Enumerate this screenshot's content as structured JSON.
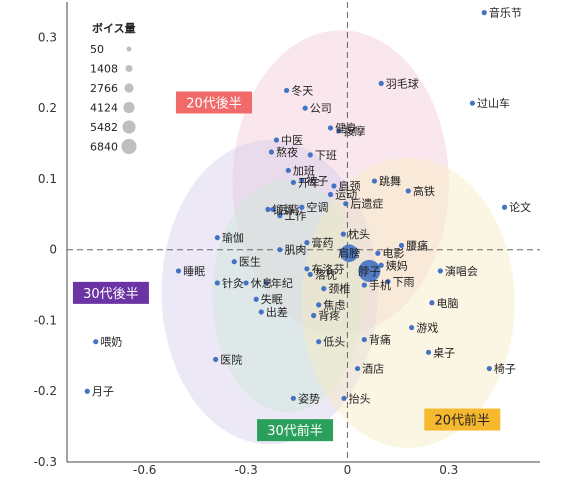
{
  "chart_data": {
    "type": "scatter",
    "xlim": [
      -0.83,
      0.57
    ],
    "ylim": [
      -0.3,
      0.35
    ],
    "x_ticks": [
      {
        "value": -0.6,
        "label": "-0.6"
      },
      {
        "value": -0.3,
        "label": "-0.3"
      },
      {
        "value": 0,
        "label": "0"
      },
      {
        "value": 0.3,
        "label": "0.3"
      }
    ],
    "y_ticks": [
      {
        "value": 0.3,
        "label": "0.3"
      },
      {
        "value": 0.2,
        "label": "0.2"
      },
      {
        "value": 0.1,
        "label": "0.1"
      },
      {
        "value": 0,
        "label": "0"
      },
      {
        "value": -0.1,
        "label": "-0.1"
      },
      {
        "value": -0.2,
        "label": "-0.2"
      },
      {
        "value": -0.3,
        "label": "-0.3"
      }
    ],
    "grid": false,
    "legend": {
      "title": "ボイス量",
      "position": "top-left",
      "entries": [
        {
          "label": "50",
          "size": 50
        },
        {
          "label": "1408",
          "size": 1408
        },
        {
          "label": "2766",
          "size": 2766
        },
        {
          "label": "4124",
          "size": 4124
        },
        {
          "label": "5482",
          "size": 5482
        },
        {
          "label": "6840",
          "size": 6840
        }
      ]
    },
    "groups": [
      {
        "name": "20代後半",
        "cx": -0.02,
        "cy": 0.095,
        "rx": 0.32,
        "ry": 0.215,
        "fill": "#f3c9d6",
        "tag_color": "#f06a6a",
        "tag_text_color": "#ffffff",
        "tag_x": -0.395,
        "tag_y": 0.208
      },
      {
        "name": "30代後半",
        "cx": -0.23,
        "cy": -0.06,
        "rx": 0.32,
        "ry": 0.215,
        "fill": "#d6cdea",
        "tag_color": "#6b33a3",
        "tag_text_color": "#ffffff",
        "tag_x": -0.7,
        "tag_y": -0.061
      },
      {
        "name": "30代前半",
        "cx": -0.175,
        "cy": -0.065,
        "rx": 0.225,
        "ry": 0.165,
        "fill": "#cfe8d6",
        "tag_color": "#2aa05c",
        "tag_text_color": "#ffffff",
        "tag_x": -0.155,
        "tag_y": -0.255
      },
      {
        "name": "20代前半",
        "cx": 0.18,
        "cy": -0.075,
        "rx": 0.315,
        "ry": 0.205,
        "fill": "#f7ecc0",
        "tag_color": "#f5b82e",
        "tag_text_color": "#222222",
        "tag_x": 0.34,
        "tag_y": -0.24
      }
    ],
    "points": [
      {
        "label": "音乐节",
        "x": 0.405,
        "y": 0.335,
        "size": 300
      },
      {
        "label": "过山车",
        "x": 0.37,
        "y": 0.207,
        "size": 300
      },
      {
        "label": "羽毛球",
        "x": 0.1,
        "y": 0.235,
        "size": 300
      },
      {
        "label": "冬天",
        "x": -0.18,
        "y": 0.225,
        "size": 300
      },
      {
        "label": "公司",
        "x": -0.125,
        "y": 0.2,
        "size": 300
      },
      {
        "label": "健身",
        "x": -0.05,
        "y": 0.172,
        "size": 300
      },
      {
        "label": "按摩",
        "x": -0.025,
        "y": 0.168,
        "size": 300
      },
      {
        "label": "中医",
        "x": -0.21,
        "y": 0.155,
        "size": 300
      },
      {
        "label": "熬夜",
        "x": -0.225,
        "y": 0.138,
        "size": 300
      },
      {
        "label": "下班",
        "x": -0.11,
        "y": 0.134,
        "size": 300
      },
      {
        "label": "加班",
        "x": -0.175,
        "y": 0.112,
        "size": 300
      },
      {
        "label": "开车",
        "x": -0.16,
        "y": 0.095,
        "size": 300
      },
      {
        "label": "被子",
        "x": -0.135,
        "y": 0.098,
        "size": 300
      },
      {
        "label": "肩颈",
        "x": -0.04,
        "y": 0.09,
        "size": 300
      },
      {
        "label": "跳舞",
        "x": 0.08,
        "y": 0.097,
        "size": 300
      },
      {
        "label": "高铁",
        "x": 0.18,
        "y": 0.083,
        "size": 300
      },
      {
        "label": "运动",
        "x": -0.05,
        "y": 0.078,
        "size": 800
      },
      {
        "label": "论文",
        "x": 0.465,
        "y": 0.06,
        "size": 300
      },
      {
        "label": "锻炼",
        "x": -0.235,
        "y": 0.057,
        "size": 300
      },
      {
        "label": "后背",
        "x": -0.22,
        "y": 0.057,
        "size": 300
      },
      {
        "label": "空调",
        "x": -0.135,
        "y": 0.06,
        "size": 300
      },
      {
        "label": "后遗症",
        "x": -0.005,
        "y": 0.065,
        "size": 300
      },
      {
        "label": "工作",
        "x": -0.2,
        "y": 0.048,
        "size": 300
      },
      {
        "label": "瑜伽",
        "x": -0.385,
        "y": 0.017,
        "size": 300
      },
      {
        "label": "枕头",
        "x": -0.012,
        "y": 0.022,
        "size": 300
      },
      {
        "label": "腰痛",
        "x": 0.16,
        "y": 0.006,
        "size": 300
      },
      {
        "label": "肌肉",
        "x": -0.2,
        "y": 0.0,
        "size": 300
      },
      {
        "label": "膏药",
        "x": -0.12,
        "y": 0.01,
        "size": 300
      },
      {
        "label": "肩膀",
        "x": 0.005,
        "y": -0.005,
        "size": 3500
      },
      {
        "label": "电影",
        "x": 0.09,
        "y": -0.005,
        "size": 300
      },
      {
        "label": "瑜伽",
        "x": -0.385,
        "y": 0.017,
        "size": 0,
        "skip": true
      },
      {
        "label": "医生",
        "x": -0.335,
        "y": -0.017,
        "size": 300
      },
      {
        "label": "睡眠",
        "x": -0.5,
        "y": -0.03,
        "size": 300
      },
      {
        "label": "布洛芬",
        "x": -0.12,
        "y": -0.027,
        "size": 300
      },
      {
        "label": "姨妈",
        "x": 0.1,
        "y": -0.022,
        "size": 300
      },
      {
        "label": "演唱会",
        "x": 0.275,
        "y": -0.03,
        "size": 300
      },
      {
        "label": "落枕",
        "x": -0.11,
        "y": -0.035,
        "size": 300
      },
      {
        "label": "脖子",
        "x": 0.065,
        "y": -0.03,
        "size": 6840
      },
      {
        "label": "针灸",
        "x": -0.385,
        "y": -0.047,
        "size": 300
      },
      {
        "label": "休息",
        "x": -0.3,
        "y": -0.047,
        "size": 300
      },
      {
        "label": "年纪",
        "x": -0.24,
        "y": -0.047,
        "size": 300
      },
      {
        "label": "手机",
        "x": 0.05,
        "y": -0.05,
        "size": 300
      },
      {
        "label": "下雨",
        "x": 0.12,
        "y": -0.045,
        "size": 300
      },
      {
        "label": "颈椎",
        "x": -0.07,
        "y": -0.055,
        "size": 300
      },
      {
        "label": "电脑",
        "x": 0.25,
        "y": -0.075,
        "size": 300
      },
      {
        "label": "焦虑",
        "x": -0.085,
        "y": -0.078,
        "size": 300
      },
      {
        "label": "失眠",
        "x": -0.27,
        "y": -0.07,
        "size": 300
      },
      {
        "label": "出差",
        "x": -0.255,
        "y": -0.088,
        "size": 300
      },
      {
        "label": "背疼",
        "x": -0.1,
        "y": -0.093,
        "size": 300
      },
      {
        "label": "游戏",
        "x": 0.19,
        "y": -0.11,
        "size": 300
      },
      {
        "label": "喂奶",
        "x": -0.745,
        "y": -0.13,
        "size": 300
      },
      {
        "label": "低头",
        "x": -0.085,
        "y": -0.13,
        "size": 300
      },
      {
        "label": "背痛",
        "x": 0.05,
        "y": -0.127,
        "size": 300
      },
      {
        "label": "桌子",
        "x": 0.24,
        "y": -0.145,
        "size": 300
      },
      {
        "label": "医院",
        "x": -0.39,
        "y": -0.155,
        "size": 300
      },
      {
        "label": "酒店",
        "x": 0.03,
        "y": -0.168,
        "size": 300
      },
      {
        "label": "椅子",
        "x": 0.42,
        "y": -0.168,
        "size": 300
      },
      {
        "label": "月子",
        "x": -0.77,
        "y": -0.2,
        "size": 300
      },
      {
        "label": "姿势",
        "x": -0.16,
        "y": -0.21,
        "size": 300
      },
      {
        "label": "抬头",
        "x": -0.01,
        "y": -0.21,
        "size": 300
      }
    ]
  }
}
